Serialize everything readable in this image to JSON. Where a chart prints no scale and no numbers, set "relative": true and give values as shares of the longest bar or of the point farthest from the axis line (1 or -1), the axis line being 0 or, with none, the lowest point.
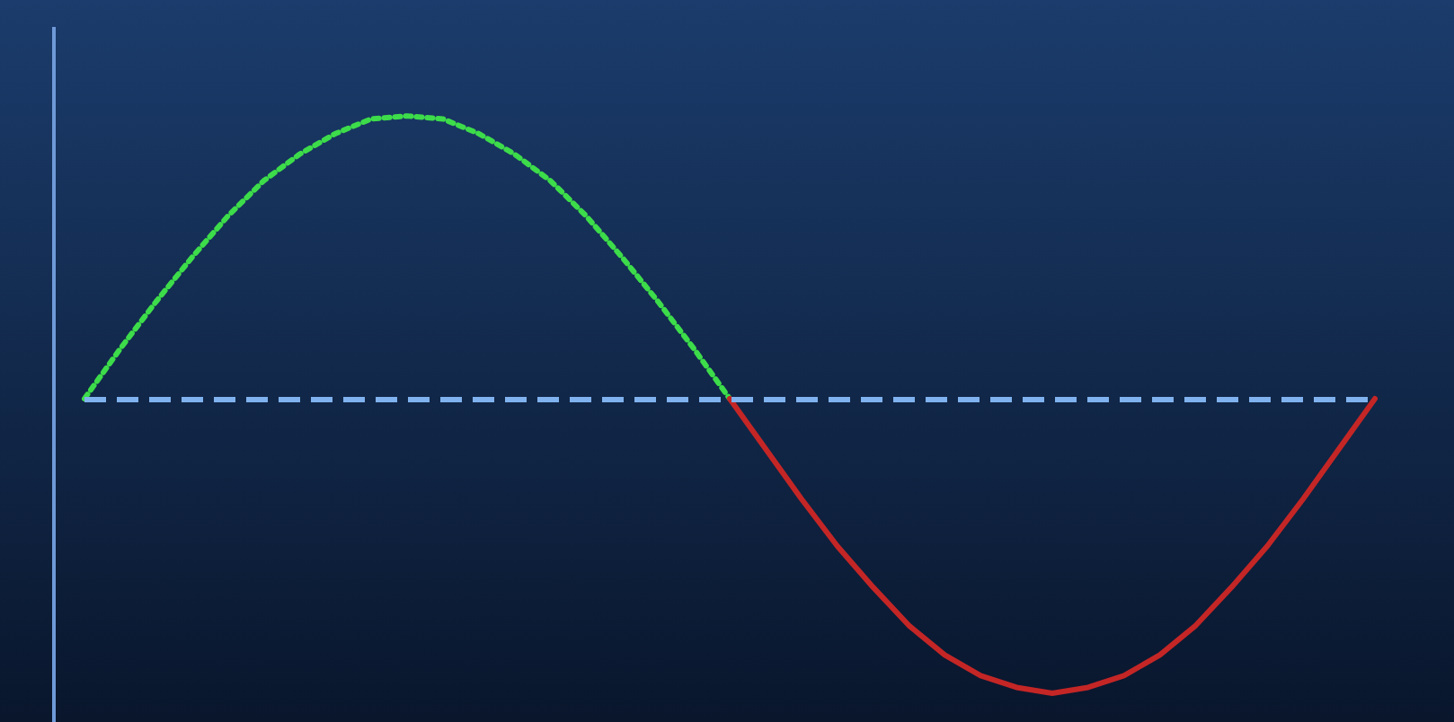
{
  "chart_data": {
    "type": "line",
    "relative": true,
    "marker": "none",
    "grid": false,
    "categories": [
      null,
      null,
      null,
      null,
      null,
      null,
      null,
      null,
      null,
      null,
      null,
      null,
      null,
      null,
      null,
      null,
      null,
      null,
      null,
      null,
      null,
      null,
      null,
      null,
      null,
      null,
      null,
      null,
      null,
      null,
      null,
      null,
      null,
      null,
      null,
      null,
      null
    ],
    "series": [
      {
        "color": "#3ddc4a",
        "line_style": "dotted",
        "values": [
          0,
          0.17,
          0.33,
          0.48,
          0.62,
          0.74,
          0.83,
          0.9,
          0.95,
          0.96,
          0.95,
          0.9,
          0.83,
          0.74,
          0.62,
          0.48,
          0.33,
          0.17,
          0,
          null,
          null,
          null,
          null,
          null,
          null,
          null,
          null,
          null,
          null,
          null,
          null,
          null,
          null,
          null,
          null,
          null,
          null
        ]
      },
      {
        "color": "#c42626",
        "line_style": "solid",
        "values": [
          null,
          null,
          null,
          null,
          null,
          null,
          null,
          null,
          null,
          null,
          null,
          null,
          null,
          null,
          null,
          null,
          null,
          null,
          0,
          -0.17,
          -0.34,
          -0.5,
          -0.64,
          -0.77,
          -0.87,
          -0.94,
          -0.98,
          -1,
          -0.98,
          -0.94,
          -0.87,
          -0.77,
          -0.64,
          -0.5,
          -0.34,
          -0.17,
          0
        ]
      }
    ],
    "ref_lines": [
      {
        "axis": "y",
        "value": 0,
        "color": "#7fb2ee",
        "line_style": "dashed"
      }
    ]
  }
}
